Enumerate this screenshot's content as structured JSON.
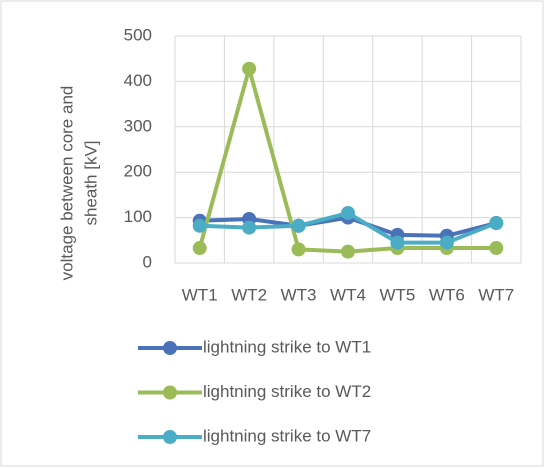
{
  "chart_data": {
    "type": "line",
    "ylabel": [
      "voltage between core and",
      "sheath [kV]"
    ],
    "categories": [
      "WT1",
      "WT2",
      "WT3",
      "WT4",
      "WT5",
      "WT6",
      "WT7"
    ],
    "series": [
      {
        "name": "lightning strike to WT1",
        "color": "#4a72b8",
        "values": [
          93,
          97,
          82,
          100,
          62,
          60,
          88
        ]
      },
      {
        "name": "lightning strike to WT2",
        "color": "#9bbb59",
        "values": [
          33,
          428,
          30,
          25,
          33,
          33,
          33
        ]
      },
      {
        "name": "lightning strike to WT7",
        "color": "#4bacc6",
        "values": [
          82,
          78,
          82,
          110,
          45,
          45,
          88
        ]
      }
    ],
    "ylim": [
      0,
      500
    ],
    "yticks": [
      0,
      100,
      200,
      300,
      400,
      500
    ],
    "grid": true,
    "legend": "bottom"
  }
}
